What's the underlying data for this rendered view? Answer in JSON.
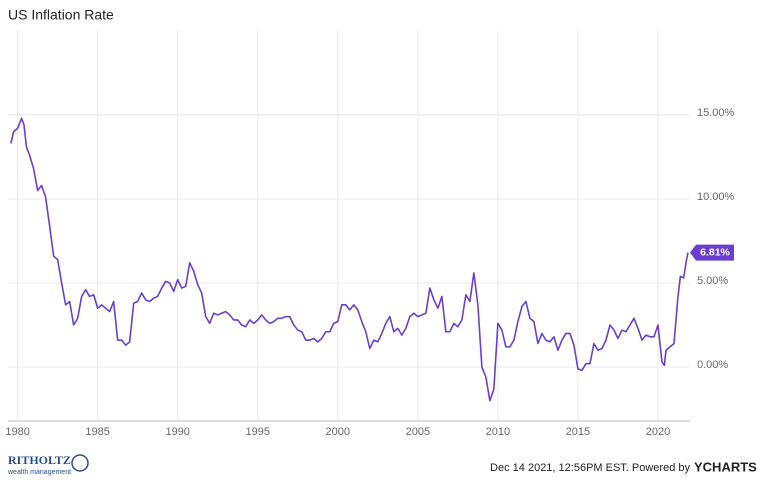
{
  "chart_data": {
    "type": "line",
    "title": "US Inflation Rate",
    "series": [
      {
        "name": "US Inflation Rate",
        "color": "#6a3fd0",
        "x": [
          1979.58,
          1979.75,
          1980.0,
          1980.25,
          1980.4,
          1980.55,
          1980.75,
          1981.0,
          1981.25,
          1981.5,
          1981.75,
          1982.0,
          1982.25,
          1982.5,
          1982.75,
          1983.0,
          1983.25,
          1983.5,
          1983.75,
          1984.0,
          1984.25,
          1984.5,
          1984.75,
          1985.0,
          1985.25,
          1985.5,
          1985.75,
          1986.0,
          1986.25,
          1986.5,
          1986.75,
          1987.0,
          1987.25,
          1987.5,
          1987.75,
          1988.0,
          1988.25,
          1988.5,
          1988.75,
          1989.0,
          1989.25,
          1989.5,
          1989.75,
          1990.0,
          1990.25,
          1990.5,
          1990.75,
          1991.0,
          1991.25,
          1991.5,
          1991.75,
          1992.0,
          1992.25,
          1992.5,
          1992.75,
          1993.0,
          1993.25,
          1993.5,
          1993.75,
          1994.0,
          1994.25,
          1994.5,
          1994.75,
          1995.0,
          1995.25,
          1995.5,
          1995.75,
          1996.0,
          1996.25,
          1996.5,
          1996.75,
          1997.0,
          1997.25,
          1997.5,
          1997.75,
          1998.0,
          1998.25,
          1998.5,
          1998.75,
          1999.0,
          1999.25,
          1999.5,
          1999.75,
          2000.0,
          2000.25,
          2000.5,
          2000.75,
          2001.0,
          2001.25,
          2001.5,
          2001.75,
          2002.0,
          2002.25,
          2002.5,
          2002.75,
          2003.0,
          2003.25,
          2003.5,
          2003.75,
          2004.0,
          2004.25,
          2004.5,
          2004.75,
          2005.0,
          2005.25,
          2005.5,
          2005.75,
          2006.0,
          2006.25,
          2006.5,
          2006.75,
          2007.0,
          2007.25,
          2007.5,
          2007.75,
          2008.0,
          2008.25,
          2008.5,
          2008.75,
          2009.0,
          2009.25,
          2009.5,
          2009.75,
          2010.0,
          2010.25,
          2010.5,
          2010.75,
          2011.0,
          2011.25,
          2011.5,
          2011.75,
          2012.0,
          2012.25,
          2012.5,
          2012.75,
          2013.0,
          2013.25,
          2013.5,
          2013.75,
          2014.0,
          2014.25,
          2014.5,
          2014.75,
          2015.0,
          2015.25,
          2015.5,
          2015.75,
          2016.0,
          2016.25,
          2016.5,
          2016.75,
          2017.0,
          2017.25,
          2017.5,
          2017.75,
          2018.0,
          2018.25,
          2018.5,
          2018.75,
          2019.0,
          2019.25,
          2019.5,
          2019.75,
          2020.0,
          2020.25,
          2020.4,
          2020.5,
          2020.75,
          2021.0,
          2021.25,
          2021.4,
          2021.6,
          2021.75,
          2021.87
        ],
        "values": [
          13.3,
          14.0,
          14.2,
          14.8,
          14.4,
          13.1,
          12.6,
          11.8,
          10.5,
          10.8,
          10.1,
          8.4,
          6.6,
          6.4,
          5.0,
          3.7,
          3.9,
          2.5,
          2.9,
          4.2,
          4.6,
          4.2,
          4.3,
          3.5,
          3.7,
          3.5,
          3.3,
          3.9,
          1.6,
          1.6,
          1.3,
          1.5,
          3.8,
          3.9,
          4.4,
          4.0,
          3.9,
          4.1,
          4.2,
          4.7,
          5.1,
          5.0,
          4.5,
          5.2,
          4.7,
          4.8,
          6.2,
          5.7,
          4.9,
          4.4,
          3.0,
          2.6,
          3.2,
          3.1,
          3.2,
          3.3,
          3.1,
          2.8,
          2.8,
          2.5,
          2.4,
          2.8,
          2.6,
          2.8,
          3.1,
          2.8,
          2.6,
          2.7,
          2.9,
          2.9,
          3.0,
          3.0,
          2.5,
          2.2,
          2.1,
          1.6,
          1.6,
          1.7,
          1.5,
          1.7,
          2.1,
          2.1,
          2.6,
          2.7,
          3.7,
          3.7,
          3.4,
          3.7,
          3.4,
          2.7,
          2.1,
          1.1,
          1.6,
          1.5,
          2.0,
          2.6,
          3.0,
          2.1,
          2.3,
          1.9,
          2.3,
          3.0,
          3.2,
          3.0,
          3.1,
          3.2,
          4.7,
          4.0,
          3.5,
          4.2,
          2.1,
          2.1,
          2.6,
          2.4,
          2.8,
          4.3,
          3.9,
          5.6,
          3.7,
          0.0,
          -0.6,
          -2.0,
          -1.3,
          2.6,
          2.2,
          1.2,
          1.2,
          1.6,
          2.7,
          3.6,
          3.9,
          2.9,
          2.7,
          1.4,
          2.0,
          1.6,
          1.5,
          1.8,
          1.0,
          1.6,
          2.0,
          2.0,
          1.3,
          -0.1,
          -0.2,
          0.2,
          0.2,
          1.4,
          1.0,
          1.1,
          1.6,
          2.5,
          2.2,
          1.7,
          2.2,
          2.1,
          2.5,
          2.9,
          2.3,
          1.6,
          1.9,
          1.8,
          1.8,
          2.5,
          0.3,
          0.1,
          1.0,
          1.2,
          1.4,
          4.2,
          5.4,
          5.3,
          6.2,
          6.81
        ]
      }
    ],
    "end_label": {
      "value": 6.81,
      "label": "6.81%"
    },
    "xlim": [
      1979.4,
      2022.0
    ],
    "xticks": [
      1980,
      1985,
      1990,
      1995,
      2000,
      2005,
      2010,
      2015,
      2020
    ],
    "ylim": [
      -3.15,
      20.05
    ],
    "yticks": [
      {
        "value": 0,
        "label": "0.00%"
      },
      {
        "value": 5,
        "label": "5.00%"
      },
      {
        "value": 10,
        "label": "10.00%"
      },
      {
        "value": 15,
        "label": "15.00%"
      }
    ],
    "grid": true
  },
  "footer": {
    "timestamp": "Dec 14 2021, 12:56PM EST. Powered by",
    "brand": "YCHARTS",
    "logo_title": "RITHOLTZ",
    "logo_subtitle": "wealth management"
  }
}
